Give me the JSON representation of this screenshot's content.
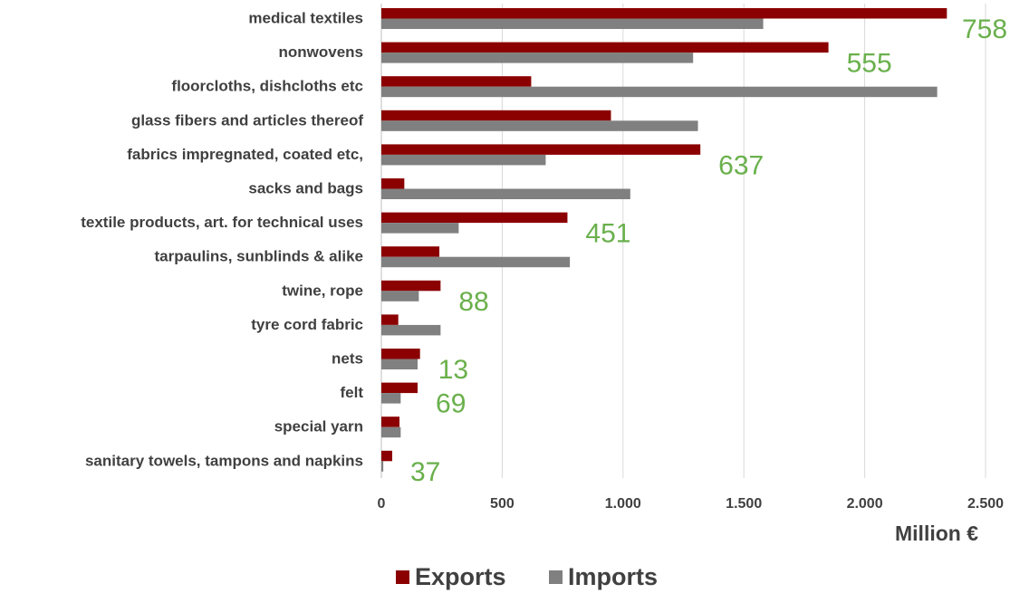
{
  "chart_data": {
    "type": "bar",
    "orientation": "horizontal",
    "categories": [
      "medical textiles",
      "nonwovens",
      "floorcloths, dishcloths etc",
      "glass fibers and articles thereof",
      "fabrics impregnated, coated etc,",
      "sacks and bags",
      "textile products, art. for technical uses",
      "tarpaulins, sunblinds & alike",
      "twine, rope",
      "tyre cord fabric",
      "nets",
      "felt",
      "special yarn",
      "sanitary towels, tampons and napkins"
    ],
    "series": [
      {
        "name": "Exports",
        "color": "#8b0000",
        "values": [
          2340,
          1850,
          620,
          950,
          1320,
          95,
          770,
          240,
          245,
          70,
          160,
          150,
          75,
          45
        ]
      },
      {
        "name": "Imports",
        "color": "#808080",
        "values": [
          1580,
          1290,
          2300,
          1310,
          680,
          1030,
          320,
          780,
          155,
          245,
          150,
          80,
          80,
          8
        ]
      }
    ],
    "annotations": [
      {
        "category": "medical textiles",
        "text": "758"
      },
      {
        "category": "nonwovens",
        "text": "555"
      },
      {
        "category": "fabrics impregnated, coated etc,",
        "text": "637"
      },
      {
        "category": "textile products, art. for technical uses",
        "text": "451"
      },
      {
        "category": "twine, rope",
        "text": "88"
      },
      {
        "category": "nets",
        "text": "13"
      },
      {
        "category": "felt",
        "text": "69"
      },
      {
        "category": "sanitary towels, tampons and napkins",
        "text": "37"
      }
    ],
    "annotation_color": "#6ab04c",
    "xticks": [
      0,
      500,
      1000,
      1500,
      2000,
      2500
    ],
    "xtick_labels": [
      "0",
      "500",
      "1.000",
      "1.500",
      "2.000",
      "2.500"
    ],
    "xlim": [
      0,
      2500
    ],
    "xlabel": "Million €",
    "title": "",
    "grid": "vertical",
    "legend_position": "bottom"
  }
}
